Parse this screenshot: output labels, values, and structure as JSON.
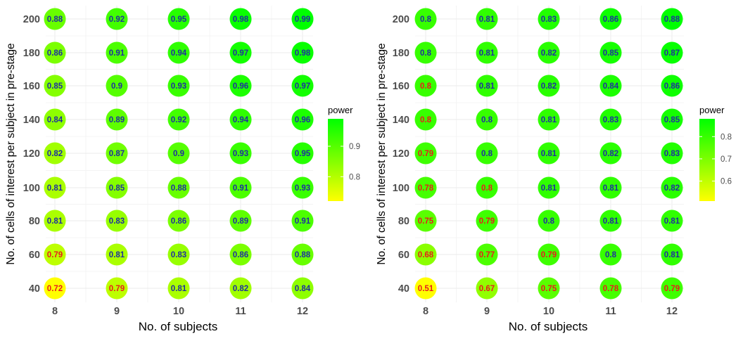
{
  "chart_data": [
    {
      "type": "bubble-heatmap",
      "xlabel": "No. of subjects",
      "ylabel": "No. of cells of interest per subject in pre-stage",
      "x": [
        8,
        9,
        10,
        11,
        12
      ],
      "y": [
        40,
        60,
        80,
        100,
        120,
        140,
        160,
        180,
        200
      ],
      "values": [
        [
          0.72,
          0.79,
          0.81,
          0.82,
          0.84
        ],
        [
          0.79,
          0.81,
          0.83,
          0.86,
          0.88
        ],
        [
          0.81,
          0.83,
          0.86,
          0.89,
          0.91
        ],
        [
          0.81,
          0.85,
          0.88,
          0.91,
          0.93
        ],
        [
          0.82,
          0.87,
          0.9,
          0.93,
          0.95
        ],
        [
          0.84,
          0.89,
          0.92,
          0.94,
          0.96
        ],
        [
          0.85,
          0.9,
          0.93,
          0.96,
          0.97
        ],
        [
          0.86,
          0.91,
          0.94,
          0.97,
          0.98
        ],
        [
          0.88,
          0.92,
          0.95,
          0.98,
          0.99
        ]
      ],
      "label_threshold": 0.8,
      "legend": {
        "title": "power",
        "ticks": [
          0.8,
          0.9
        ],
        "range": [
          0.72,
          0.99
        ],
        "position": "right"
      },
      "colors": {
        "low": "#ffff00",
        "high": "#00ff00",
        "label_high": "#1f2f9e",
        "label_low": "#e81c1c"
      },
      "grid": true
    },
    {
      "type": "bubble-heatmap",
      "xlabel": "No. of subjects",
      "ylabel": "No. of cells of interest per subject in pre-stage",
      "x": [
        8,
        9,
        10,
        11,
        12
      ],
      "y": [
        40,
        60,
        80,
        100,
        120,
        140,
        160,
        180,
        200
      ],
      "values": [
        [
          0.51,
          0.67,
          0.75,
          0.78,
          0.79
        ],
        [
          0.68,
          0.77,
          0.79,
          0.8,
          0.81
        ],
        [
          0.75,
          0.79,
          0.8,
          0.81,
          0.81
        ],
        [
          0.78,
          0.8,
          0.81,
          0.81,
          0.82
        ],
        [
          0.79,
          0.8,
          0.81,
          0.82,
          0.83
        ],
        [
          0.8,
          0.8,
          0.81,
          0.83,
          0.85
        ],
        [
          0.8,
          0.81,
          0.82,
          0.84,
          0.86
        ],
        [
          0.8,
          0.81,
          0.82,
          0.85,
          0.87
        ],
        [
          0.8,
          0.81,
          0.83,
          0.86,
          0.88
        ]
      ],
      "label_threshold": 0.8,
      "red_override": [
        [
          3,
          1
        ],
        [
          5,
          0
        ],
        [
          6,
          0
        ]
      ],
      "legend": {
        "title": "power",
        "ticks": [
          0.6,
          0.7,
          0.8
        ],
        "range": [
          0.51,
          0.88
        ],
        "position": "right"
      },
      "colors": {
        "low": "#ffff00",
        "high": "#00ff00",
        "label_high": "#1f2f9e",
        "label_low": "#e81c1c"
      },
      "grid": true
    }
  ]
}
